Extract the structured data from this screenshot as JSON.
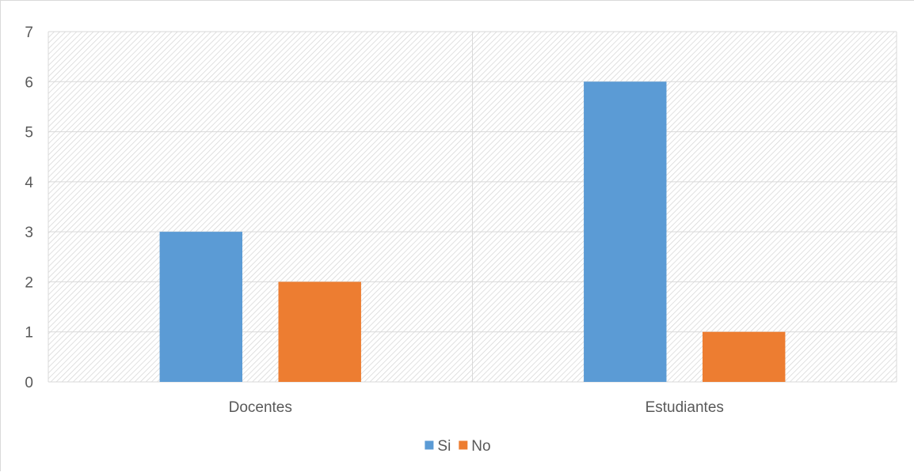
{
  "chart_data": {
    "type": "bar",
    "title": "",
    "xlabel": "",
    "ylabel": "",
    "categories": [
      "Docentes",
      "Estudiantes"
    ],
    "series": [
      {
        "name": "Si",
        "values": [
          3,
          6
        ],
        "color": "#5b9bd5"
      },
      {
        "name": "No",
        "values": [
          2,
          1
        ],
        "color": "#ed7d31"
      }
    ],
    "ylim": [
      0,
      7
    ],
    "yticks": [
      0,
      1,
      2,
      3,
      4,
      5,
      6,
      7
    ],
    "grid": true,
    "legend_position": "bottom",
    "plot_background": "diagonal-hatch"
  }
}
